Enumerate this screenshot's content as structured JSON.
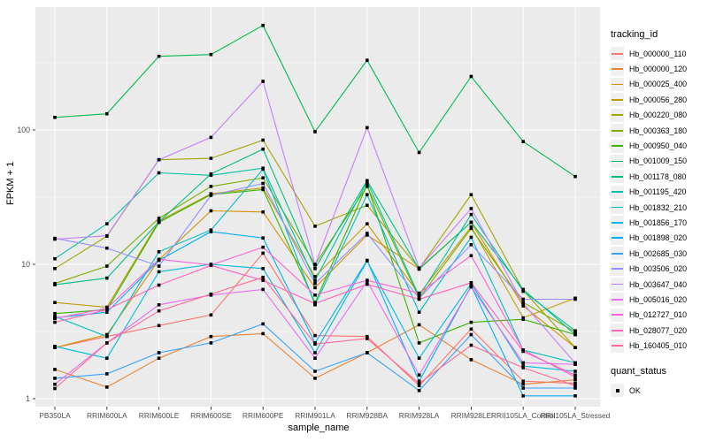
{
  "figure": {
    "panel_bg": "#EBEBEB",
    "grid_color": "#FFFFFF",
    "axis_text_color": "#4D4D4D",
    "tick_mark_color": "#333333",
    "point_color": "#000000"
  },
  "axes": {
    "x_label": "sample_name",
    "y_label": "FPKM + 1",
    "y_ticks": [
      1,
      10,
      100
    ]
  },
  "legend": {
    "tracking_title": "tracking_id",
    "quant_title": "quant_status",
    "quant_items": [
      {
        "label": "OK"
      }
    ]
  },
  "chart_data": {
    "type": "line",
    "x_scale": "categorical",
    "y_scale": "log10",
    "ylim": [
      0.95,
      700
    ],
    "title": "",
    "xlabel": "sample_name",
    "ylabel": "FPKM + 1",
    "grid": true,
    "legend_position": "right",
    "point_marker": "filled-black-square (quant_status OK)",
    "categories": [
      "PB350LA",
      "RRIM600LA",
      "RRIM600LE",
      "RRIM600SE",
      "RRIM600PE",
      "RRIM901LA",
      "RRIM928BA",
      "RRIM928LA",
      "RRIM928LE",
      "RRII105LA_Control",
      "RRII105LA_Stressed"
    ],
    "series": [
      {
        "name": "Hb_000000_110",
        "color": "#F8766D",
        "values": [
          2.4,
          2.9,
          3.5,
          4.2,
          12.1,
          2.95,
          2.9,
          1.25,
          3.3,
          1.35,
          1.3
        ]
      },
      {
        "name": "Hb_000000_120",
        "color": "#EA8331",
        "values": [
          1.65,
          1.22,
          2.0,
          2.9,
          3.05,
          1.42,
          2.2,
          3.55,
          1.95,
          1.28,
          1.38
        ]
      },
      {
        "name": "Hb_000025_400",
        "color": "#D89000",
        "values": [
          2.4,
          3.0,
          10.8,
          25,
          24.5,
          6.7,
          16.5,
          9.3,
          20.5,
          4.9,
          2.4
        ]
      },
      {
        "name": "Hb_000056_280",
        "color": "#C09B00",
        "values": [
          5.2,
          4.8,
          21,
          33.5,
          37,
          8.1,
          20,
          6.0,
          19,
          4.0,
          5.6
        ]
      },
      {
        "name": "Hb_000220_080",
        "color": "#A3A500",
        "values": [
          9.3,
          16.2,
          60,
          61.5,
          84,
          19.2,
          27.5,
          9.3,
          33,
          6.4,
          2.4
        ]
      },
      {
        "name": "Hb_000363_180",
        "color": "#7CAE00",
        "values": [
          7.2,
          9.7,
          22,
          38,
          44,
          10,
          38,
          5.6,
          18.5,
          5.2,
          3.15
        ]
      },
      {
        "name": "Hb_000950_040",
        "color": "#39B600",
        "values": [
          4.3,
          4.6,
          20.5,
          33,
          36,
          5.2,
          39,
          2.6,
          3.7,
          3.9,
          3.0
        ]
      },
      {
        "name": "Hb_001009_150",
        "color": "#00BB4E",
        "values": [
          124,
          132,
          353,
          364,
          600,
          97,
          330,
          68,
          250,
          82,
          45
        ]
      },
      {
        "name": "Hb_001178_080",
        "color": "#00BF7D",
        "values": [
          7.05,
          7.9,
          20.7,
          47,
          72,
          9.3,
          42,
          9.2,
          20.6,
          6.5,
          3.0
        ]
      },
      {
        "name": "Hb_001195_420",
        "color": "#00C1A3",
        "values": [
          11,
          20,
          48,
          46,
          52,
          7.6,
          41,
          5.8,
          23.5,
          6.3,
          3.2
        ]
      },
      {
        "name": "Hb_001832_210",
        "color": "#00BFC4",
        "values": [
          4.1,
          2.9,
          12.4,
          18,
          51,
          5.0,
          33,
          4.4,
          15.9,
          2.3,
          1.85
        ]
      },
      {
        "name": "Hb_001856_170",
        "color": "#00BAE0",
        "values": [
          2.45,
          2.0,
          8.8,
          10,
          9.3,
          2.2,
          10.6,
          2.0,
          7.2,
          1.75,
          1.6
        ]
      },
      {
        "name": "Hb_001898_020",
        "color": "#00B0F6",
        "values": [
          4.0,
          4.4,
          10.7,
          17.5,
          15.7,
          2.6,
          10.7,
          1.35,
          6.9,
          1.05,
          1.05
        ]
      },
      {
        "name": "Hb_002685_030",
        "color": "#35A2FF",
        "values": [
          1.42,
          1.53,
          2.2,
          2.6,
          3.6,
          1.6,
          2.2,
          1.15,
          3.0,
          1.2,
          1.2
        ]
      },
      {
        "name": "Hb_003506_020",
        "color": "#9590FF",
        "values": [
          15.6,
          13.2,
          9.7,
          32.6,
          40,
          7.2,
          17,
          5.6,
          14,
          5.5,
          5.5
        ]
      },
      {
        "name": "Hb_003647_040",
        "color": "#C77CFF",
        "values": [
          15.4,
          16.3,
          60,
          88,
          230,
          9.9,
          104,
          9.4,
          26,
          5.1,
          1.84
        ]
      },
      {
        "name": "Hb_005016_020",
        "color": "#E76BF3",
        "values": [
          1.28,
          2.6,
          5.0,
          5.9,
          6.5,
          2.0,
          7.5,
          1.5,
          6.8,
          1.85,
          1.8
        ]
      },
      {
        "name": "Hb_012727_010",
        "color": "#FA62DB",
        "values": [
          3.95,
          4.7,
          10.9,
          9.9,
          13.4,
          5.9,
          7.6,
          6.1,
          11.6,
          2.3,
          1.45
        ]
      },
      {
        "name": "Hb_028077_020",
        "color": "#FF62BC",
        "values": [
          3.7,
          4.6,
          7.0,
          9.8,
          7.6,
          5.1,
          7.1,
          5.5,
          7.3,
          2.25,
          1.5
        ]
      },
      {
        "name": "Hb_160405_010",
        "color": "#FF6A98",
        "values": [
          1.19,
          2.6,
          4.5,
          6.0,
          8.0,
          2.55,
          2.8,
          1.3,
          2.5,
          1.7,
          1.25
        ]
      }
    ]
  }
}
